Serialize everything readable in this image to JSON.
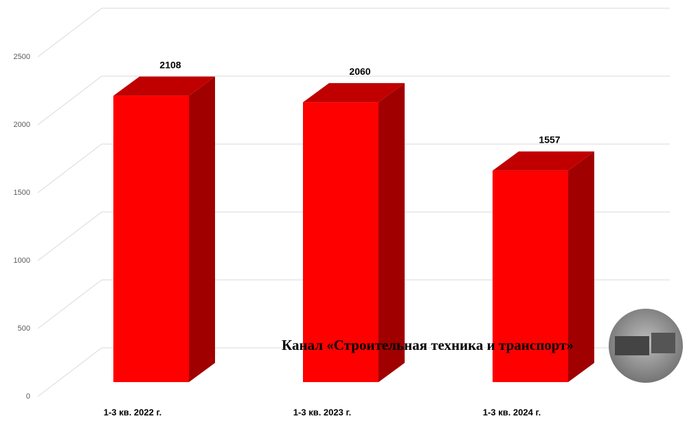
{
  "chart_data": {
    "type": "bar3d",
    "categories": [
      "1-3 кв. 2022 г.",
      "1-3 кв. 2023 г.",
      "1-3 кв. 2024 г."
    ],
    "values": [
      2108,
      2060,
      1557
    ],
    "color": "#ff0000",
    "ylim": [
      0,
      2500
    ],
    "yticks": [
      0,
      500,
      1000,
      1500,
      2000,
      2500
    ],
    "grid": true,
    "watermark": "Канал «Строительная техника и транспорт»"
  }
}
